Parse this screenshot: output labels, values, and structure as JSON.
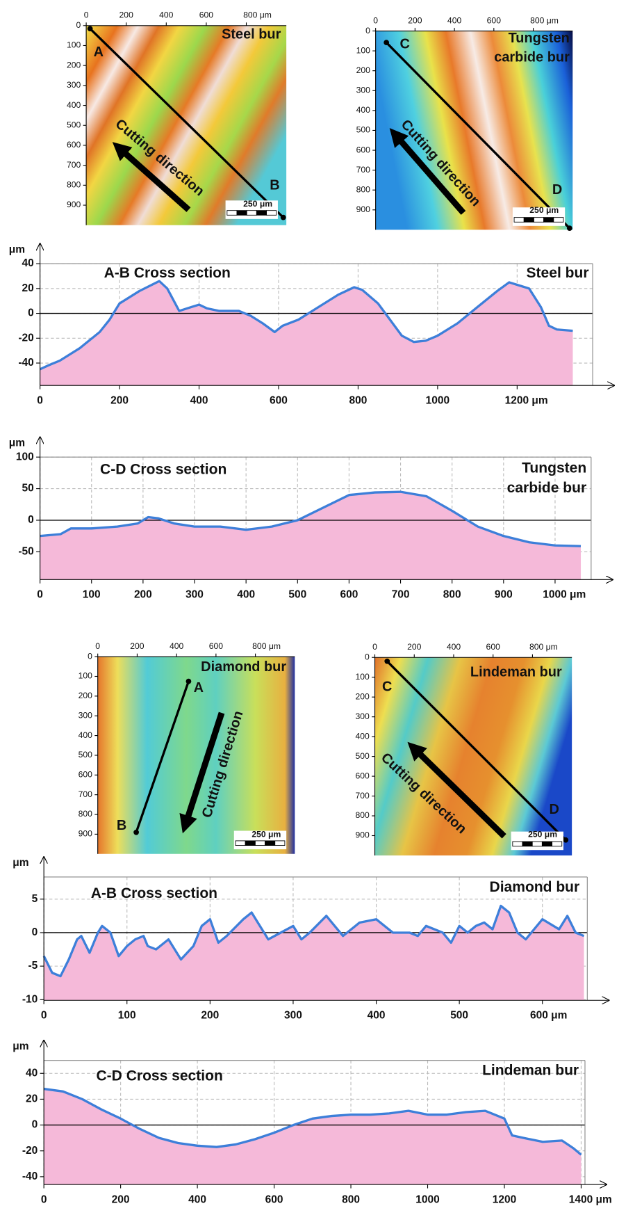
{
  "chart_data": [
    {
      "type": "map",
      "title": [
        "Steel bur"
      ],
      "xlim": [
        0,
        1000
      ],
      "ylim": [
        0,
        1000
      ],
      "xticks": [
        0,
        200,
        400,
        600,
        {
          "value": 800,
          "label": "800 μm"
        }
      ],
      "yticks": [
        0,
        100,
        200,
        300,
        400,
        500,
        600,
        700,
        800,
        900
      ],
      "points": [
        "A",
        "B"
      ],
      "annotation": "Cutting direction",
      "scale_bar": "250 μm"
    },
    {
      "type": "map",
      "title": [
        "Tungsten",
        "carbide bur"
      ],
      "xlim": [
        0,
        1000
      ],
      "ylim": [
        0,
        1000
      ],
      "xticks": [
        0,
        200,
        400,
        600,
        {
          "value": 800,
          "label": "800 μm"
        }
      ],
      "yticks": [
        0,
        100,
        200,
        300,
        400,
        500,
        600,
        700,
        800,
        900
      ],
      "points": [
        "C",
        "D"
      ],
      "annotation": "Cutting direction",
      "scale_bar": "250 μm"
    },
    {
      "type": "area",
      "title": "A-B Cross section",
      "label": [
        "Steel bur"
      ],
      "ylabel": "μm",
      "x": [
        0,
        20,
        50,
        100,
        150,
        175,
        200,
        250,
        300,
        320,
        350,
        380,
        400,
        420,
        450,
        500,
        530,
        560,
        590,
        610,
        650,
        700,
        750,
        790,
        810,
        850,
        880,
        910,
        940,
        970,
        1000,
        1050,
        1100,
        1150,
        1180,
        1210,
        1230,
        1260,
        1280,
        1300,
        1340
      ],
      "values": [
        -45,
        -42,
        -38,
        -28,
        -15,
        -5,
        8,
        18,
        26,
        20,
        2,
        5,
        7,
        4,
        2,
        2,
        -2,
        -8,
        -15,
        -10,
        -5,
        5,
        15,
        21,
        19,
        8,
        -5,
        -18,
        -23,
        -22,
        -18,
        -8,
        5,
        18,
        25,
        22,
        20,
        5,
        -10,
        -13,
        -14
      ],
      "color": "#3d7fd9",
      "fill": "#f5b9d9",
      "xlim": [
        0,
        1390
      ],
      "ylim": [
        -58,
        40
      ],
      "xticks": [
        0,
        200,
        400,
        600,
        800,
        1000,
        {
          "value": 1200,
          "label": "1200 μm"
        }
      ],
      "yticks": [
        -40,
        -20,
        0,
        20,
        40
      ],
      "grid": true
    },
    {
      "type": "area",
      "title": "C-D Cross section",
      "label": [
        "Tungsten",
        "carbide bur"
      ],
      "ylabel": "μm",
      "x": [
        0,
        40,
        60,
        100,
        150,
        190,
        210,
        230,
        260,
        300,
        350,
        400,
        450,
        500,
        550,
        600,
        650,
        700,
        750,
        800,
        850,
        900,
        950,
        1000,
        1050
      ],
      "values": [
        -25,
        -22,
        -13,
        -13,
        -10,
        -5,
        5,
        3,
        -5,
        -10,
        -10,
        -15,
        -10,
        0,
        20,
        40,
        44,
        45,
        38,
        15,
        -10,
        -25,
        -35,
        -40,
        -41
      ],
      "color": "#3d7fd9",
      "fill": "#f5b9d9",
      "xlim": [
        0,
        1070
      ],
      "ylim": [
        -94,
        100
      ],
      "xticks": [
        0,
        100,
        200,
        300,
        400,
        500,
        600,
        700,
        800,
        900,
        {
          "value": 1000,
          "label": "1000 μm"
        }
      ],
      "yticks": [
        -50,
        0,
        50,
        100
      ],
      "grid": true
    },
    {
      "type": "map",
      "title": [
        "Diamond bur"
      ],
      "xlim": [
        0,
        1000
      ],
      "ylim": [
        0,
        1000
      ],
      "xticks": [
        0,
        200,
        400,
        600,
        {
          "value": 800,
          "label": "800 μm"
        }
      ],
      "yticks": [
        0,
        100,
        200,
        300,
        400,
        500,
        600,
        700,
        800,
        900
      ],
      "points": [
        "A",
        "B"
      ],
      "annotation": "Cutting direction",
      "scale_bar": "250 μm"
    },
    {
      "type": "map",
      "title": [
        "Lindeman bur"
      ],
      "xlim": [
        0,
        1000
      ],
      "ylim": [
        0,
        1000
      ],
      "xticks": [
        0,
        200,
        400,
        600,
        {
          "value": 800,
          "label": "800 μm"
        }
      ],
      "yticks": [
        0,
        100,
        200,
        300,
        400,
        500,
        600,
        700,
        800,
        900
      ],
      "points": [
        "C",
        "D"
      ],
      "annotation": "Cutting direction",
      "scale_bar": "250 μm"
    },
    {
      "type": "area",
      "title": "A-B Cross section",
      "label": [
        "Diamond bur"
      ],
      "ylabel": "μm",
      "x": [
        0,
        10,
        20,
        30,
        40,
        45,
        55,
        65,
        70,
        80,
        90,
        100,
        110,
        120,
        125,
        135,
        150,
        165,
        180,
        190,
        200,
        210,
        220,
        240,
        250,
        260,
        270,
        285,
        300,
        310,
        320,
        340,
        350,
        360,
        380,
        400,
        410,
        420,
        440,
        450,
        460,
        480,
        490,
        500,
        510,
        520,
        530,
        540,
        550,
        560,
        570,
        580,
        600,
        620,
        630,
        640,
        650
      ],
      "values": [
        -3.5,
        -6,
        -6.5,
        -4,
        -1,
        -0.5,
        -3,
        0,
        1,
        0,
        -3.5,
        -2,
        -1,
        -0.5,
        -2,
        -2.5,
        -1,
        -4,
        -2,
        1,
        2,
        -1.5,
        -0.5,
        2,
        3,
        1,
        -1,
        0,
        1,
        -1,
        0,
        2.5,
        1,
        -0.5,
        1.5,
        2,
        1,
        0,
        0,
        -0.5,
        1,
        0,
        -1.5,
        1,
        0,
        1,
        1.5,
        0.5,
        4,
        3,
        0,
        -1,
        2,
        0.5,
        2.5,
        0,
        -0.5
      ],
      "color": "#3d7fd9",
      "fill": "#f5b9d9",
      "xlim": [
        0,
        654
      ],
      "ylim": [
        -10.1,
        8.3
      ],
      "xticks": [
        0,
        100,
        200,
        300,
        400,
        500,
        {
          "value": 600,
          "label": "600 μm"
        }
      ],
      "yticks": [
        -10,
        -5,
        0,
        5
      ],
      "grid": true
    },
    {
      "type": "area",
      "title": "C-D Cross section",
      "label": [
        "Lindeman bur"
      ],
      "ylabel": "μm",
      "x": [
        0,
        50,
        100,
        150,
        200,
        250,
        300,
        350,
        400,
        450,
        500,
        550,
        600,
        650,
        700,
        750,
        800,
        850,
        900,
        950,
        1000,
        1050,
        1100,
        1150,
        1200,
        1220,
        1250,
        1300,
        1350,
        1380,
        1400
      ],
      "values": [
        28,
        26,
        20,
        12,
        5,
        -3,
        -10,
        -14,
        -16,
        -17,
        -15,
        -11,
        -6,
        0,
        5,
        7,
        8,
        8,
        9,
        11,
        8,
        8,
        10,
        11,
        5,
        -8,
        -10,
        -13,
        -12,
        -18,
        -23
      ],
      "color": "#3d7fd9",
      "fill": "#f5b9d9",
      "xlim": [
        0,
        1410
      ],
      "ylim": [
        -46,
        50
      ],
      "xticks": [
        0,
        200,
        400,
        600,
        800,
        1000,
        1200,
        {
          "value": 1400,
          "label": "1400 μm"
        }
      ],
      "yticks": [
        -40,
        -20,
        0,
        20,
        40
      ],
      "grid": true
    }
  ]
}
